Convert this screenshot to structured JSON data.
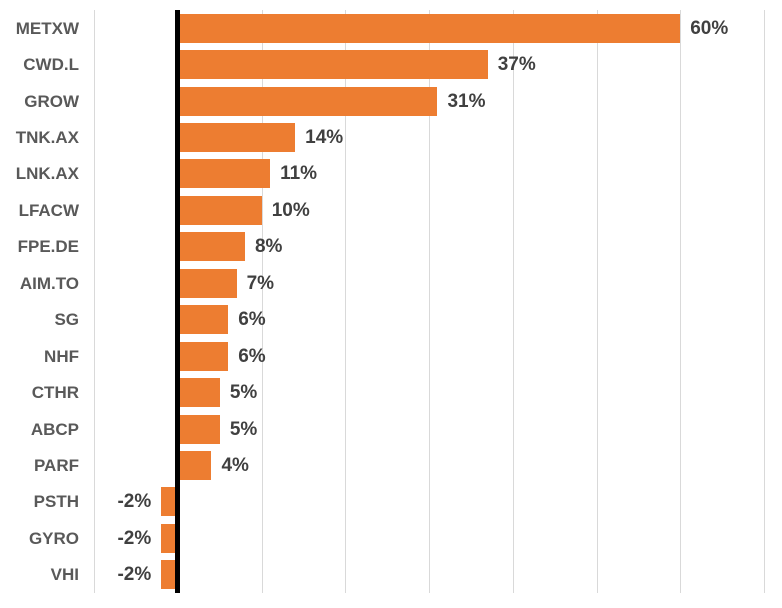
{
  "chart_data": {
    "type": "bar",
    "orientation": "horizontal",
    "title": "",
    "xlabel": "",
    "ylabel": "",
    "categories": [
      "METXW",
      "CWD.L",
      "GROW",
      "TNK.AX",
      "LNK.AX",
      "LFACW",
      "FPE.DE",
      "AIM.TO",
      "SG",
      "NHF",
      "CTHR",
      "ABCP",
      "PARF",
      "PSTH",
      "GYRO",
      "VHI"
    ],
    "values": [
      60,
      37,
      31,
      14,
      11,
      10,
      8,
      7,
      6,
      6,
      5,
      5,
      4,
      -2,
      -2,
      -2
    ],
    "value_labels": [
      "60%",
      "37%",
      "31%",
      "14%",
      "11%",
      "10%",
      "8%",
      "7%",
      "6%",
      "6%",
      "5%",
      "5%",
      "4%",
      "-2%",
      "-2%",
      "-2%"
    ],
    "xlim": [
      -10,
      70
    ],
    "gridline_values": [
      -10,
      10,
      20,
      30,
      40,
      50,
      60,
      70
    ],
    "grid": true,
    "legend": "none",
    "colors": {
      "bar": "#ED7D31",
      "category_label": "#595959",
      "value_label": "#404040",
      "gridline": "#D9D9D9",
      "axis": "#000000",
      "background": "#FFFFFF"
    }
  }
}
